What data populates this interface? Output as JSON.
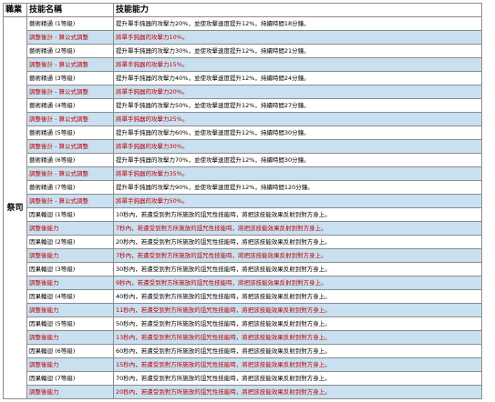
{
  "headers": {
    "job": "職業",
    "name": "技能名稱",
    "desc": "技能能力"
  },
  "job": "祭司",
  "colors": {
    "alt_row_bg": "#c9e0f0",
    "red_text": "#c00000",
    "border": "#8c8c8c"
  },
  "rows": [
    {
      "name": "藝術精通 (1等級)",
      "desc": "提升單手鈍器的攻擊力20%，並使攻擊速度提升12%，持續時間18分鐘。",
      "style": "black"
    },
    {
      "name": "調整後計 - 算公式調整",
      "desc": "將單手鈍器的攻擊力10%。",
      "style": "red"
    },
    {
      "name": "藝術精通 (2等級)",
      "desc": "提升單手鈍器的攻擊力30%，並使攻擊速度提升12%，持續時間21分鐘。",
      "style": "black"
    },
    {
      "name": "調整後計 - 算公式調整",
      "desc": "將單手鈍器的攻擊力15%。",
      "style": "red"
    },
    {
      "name": "藝術精通 (3等級)",
      "desc": "提升單手鈍器的攻擊力40%，並使攻擊速度提升12%，持續時間24分鐘。",
      "style": "black"
    },
    {
      "name": "調整後計 - 算公式調整",
      "desc": "將單手鈍器的攻擊力20%。",
      "style": "red"
    },
    {
      "name": "藝術精通 (4等級)",
      "desc": "提升單手鈍器的攻擊力50%，並使攻擊速度提升12%，持續時間27分鐘。",
      "style": "black"
    },
    {
      "name": "調整後計 - 算公式調整",
      "desc": "將單手鈍器的攻擊力25%。",
      "style": "red"
    },
    {
      "name": "藝術精通 (5等級)",
      "desc": "提升單手鈍器的攻擊力60%，並使攻擊速度提升12%，持續時間30分鐘。",
      "style": "black"
    },
    {
      "name": "調整後計 - 算公式調整",
      "desc": "將單手鈍器的攻擊力30%。",
      "style": "red"
    },
    {
      "name": "藝術精通 (6等級)",
      "desc": "提升單手鈍器的攻擊力70%，並使攻擊速度提升12%，持續時間30分鐘。",
      "style": "black"
    },
    {
      "name": "調整後計 - 算公式調整",
      "desc": "將單手鈍器的攻擊力35%。",
      "style": "red"
    },
    {
      "name": "藝術精通 (7等級)",
      "desc": "提升單手鈍器的攻擊力90%，並使攻擊速度提升12%，持續時間120分鐘。",
      "style": "black"
    },
    {
      "name": "調整後計 - 算公式調整",
      "desc": "將單手鈍器的攻擊力50%。",
      "style": "red"
    },
    {
      "name": "因果輪迴 (1等級)",
      "desc": "10秒內，若遭受到對方所施放的詛咒性技能時，將把該技能效果反射到對方身上。",
      "style": "black"
    },
    {
      "name": "調整後能力",
      "desc": "7秒內，若遭受到對方所施放的詛咒性技能時，將把該技能效果反射到對方身上。",
      "style": "red"
    },
    {
      "name": "因果輪迴 (2等級)",
      "desc": "20秒內，若遭受到對方所施放的詛咒性技能時，將把該技能效果反射到對方身上。",
      "style": "black"
    },
    {
      "name": "調整後能力",
      "desc": "7秒內，若遭受到對方所施放的詛咒性技能時，將把該技能效果反射到對方身上。",
      "style": "red"
    },
    {
      "name": "因果輪迴 (3等級)",
      "desc": "30秒內，若遭受到對方所施放的詛咒性技能時，將把該技能效果反射到對方身上。",
      "style": "black"
    },
    {
      "name": "調整後能力",
      "desc": "9秒內，若遭受到對方所施放的詛咒性技能時，將把該技能效果反射到對方身上。",
      "style": "red"
    },
    {
      "name": "因果輪迴 (4等級)",
      "desc": "40秒內，若遭受到對方所施放的詛咒性技能時，將把該技能效果反射到對方身上。",
      "style": "black"
    },
    {
      "name": "調整後能力",
      "desc": "11秒內，若遭受到對方所施放的詛咒性技能時，將把該技能效果反射到對方身上。",
      "style": "red"
    },
    {
      "name": "因果輪迴 (5等級)",
      "desc": "50秒內，若遭受到對方所施放的詛咒性技能時，將把該技能效果反射到對方身上。",
      "style": "black"
    },
    {
      "name": "調整後能力",
      "desc": "13秒內，若遭受到對方所施放的詛咒性技能時，將把該技能效果反射到對方身上。",
      "style": "red"
    },
    {
      "name": "因果輪迴 (6等級)",
      "desc": "60秒內，若遭受到對方所施放的詛咒性技能時，將把該技能效果反射到對方身上。",
      "style": "black"
    },
    {
      "name": "調整後能力",
      "desc": "15秒內，若遭受到對方所施放的詛咒性技能時，將把該技能效果反射到對方身上。",
      "style": "red"
    },
    {
      "name": "因果輪迴 (7等級)",
      "desc": "70秒內，若遭受到對方所施放的詛咒性技能時，將把該技能效果反射到對方身上。",
      "style": "black"
    },
    {
      "name": "調整後能力",
      "desc": "20秒內，若遭受到對方所施放的詛咒性技能時，將把該技能效果反射到對方身上。",
      "style": "red"
    }
  ]
}
